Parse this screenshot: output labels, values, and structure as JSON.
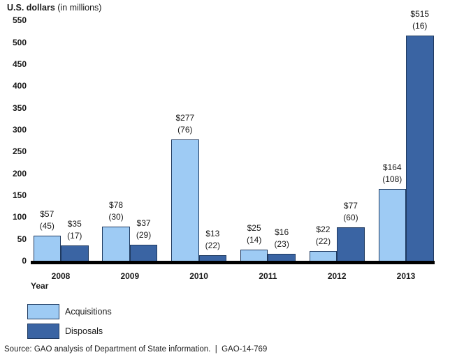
{
  "title": {
    "bold": "U.S. dollars",
    "rest": " (in millions)"
  },
  "x_axis_title": "Year",
  "source": "Source: GAO analysis of Department of State information.  |  GAO-14-769",
  "colors": {
    "acquisitions": "#9ECBF4",
    "disposals": "#3A64A3",
    "bar_border": "#1F3A60",
    "axis_line": "#000000",
    "text": "#1a1a1a"
  },
  "legend": {
    "items": [
      {
        "label": "Acquisitions",
        "color_key": "acquisitions"
      },
      {
        "label": "Disposals",
        "color_key": "disposals"
      }
    ]
  },
  "chart_data": {
    "type": "bar",
    "title": "U.S. dollars (in millions)",
    "xlabel": "Year",
    "ylabel": "U.S. dollars (in millions)",
    "categories": [
      "2008",
      "2009",
      "2010",
      "2011",
      "2012",
      "2013"
    ],
    "series": [
      {
        "name": "Acquisitions",
        "values": [
          57,
          78,
          277,
          25,
          22,
          164
        ],
        "labels": [
          [
            "$57",
            "(45)"
          ],
          [
            "$78",
            "(30)"
          ],
          [
            "$277",
            "(76)"
          ],
          [
            "$25",
            "(14)"
          ],
          [
            "$22",
            "(22)"
          ],
          [
            "$164",
            "(108)"
          ]
        ]
      },
      {
        "name": "Disposals",
        "values": [
          35,
          37,
          13,
          16,
          77,
          515
        ],
        "labels": [
          [
            "$35",
            "(17)"
          ],
          [
            "$37",
            "(29)"
          ],
          [
            "$13",
            "(22)"
          ],
          [
            "$16",
            "(23)"
          ],
          [
            "$77",
            "(60)"
          ],
          [
            "$515",
            "(16)"
          ]
        ]
      }
    ],
    "ylim": [
      0,
      550
    ],
    "ytick_step": 50,
    "grid": false,
    "legend_position": "bottom-left"
  }
}
